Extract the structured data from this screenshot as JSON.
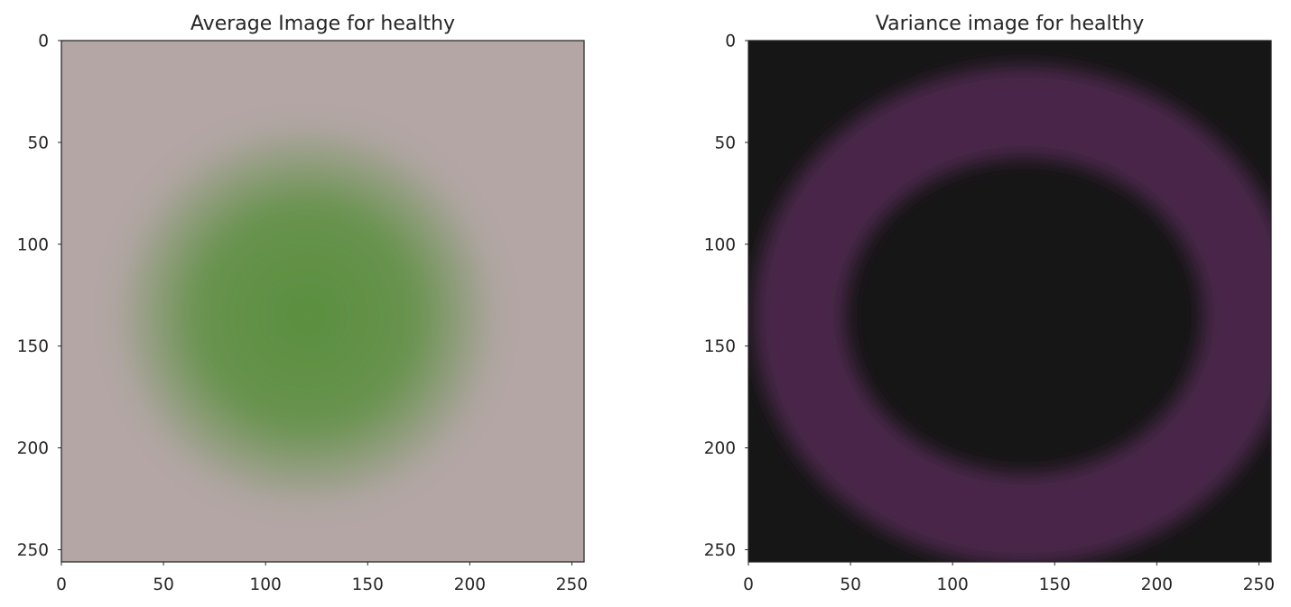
{
  "chart_data": [
    {
      "type": "heatmap",
      "title": "Average Image for healthy",
      "xlabel": "",
      "ylabel": "",
      "xlim": [
        0,
        256
      ],
      "ylim": [
        256,
        0
      ],
      "xticks": [
        0,
        50,
        100,
        150,
        200,
        250
      ],
      "yticks": [
        0,
        50,
        100,
        150,
        200,
        250
      ],
      "grid": false,
      "background_color": "#b3a6a5",
      "blob_color": "#5a8f3e",
      "blob_center": [
        120,
        135
      ],
      "blob_radius": [
        95,
        95
      ]
    },
    {
      "type": "heatmap",
      "title": "Variance image for healthy",
      "xlabel": "",
      "ylabel": "",
      "xlim": [
        0,
        256
      ],
      "ylim": [
        256,
        0
      ],
      "xticks": [
        0,
        50,
        100,
        150,
        200,
        250
      ],
      "yticks": [
        0,
        50,
        100,
        150,
        200,
        250
      ],
      "grid": false,
      "background_color": "#161616",
      "ring_color": "#4a2548",
      "ring_center": [
        135,
        135
      ],
      "ring_radius": [
        110,
        100
      ],
      "ring_thickness": 45
    }
  ]
}
